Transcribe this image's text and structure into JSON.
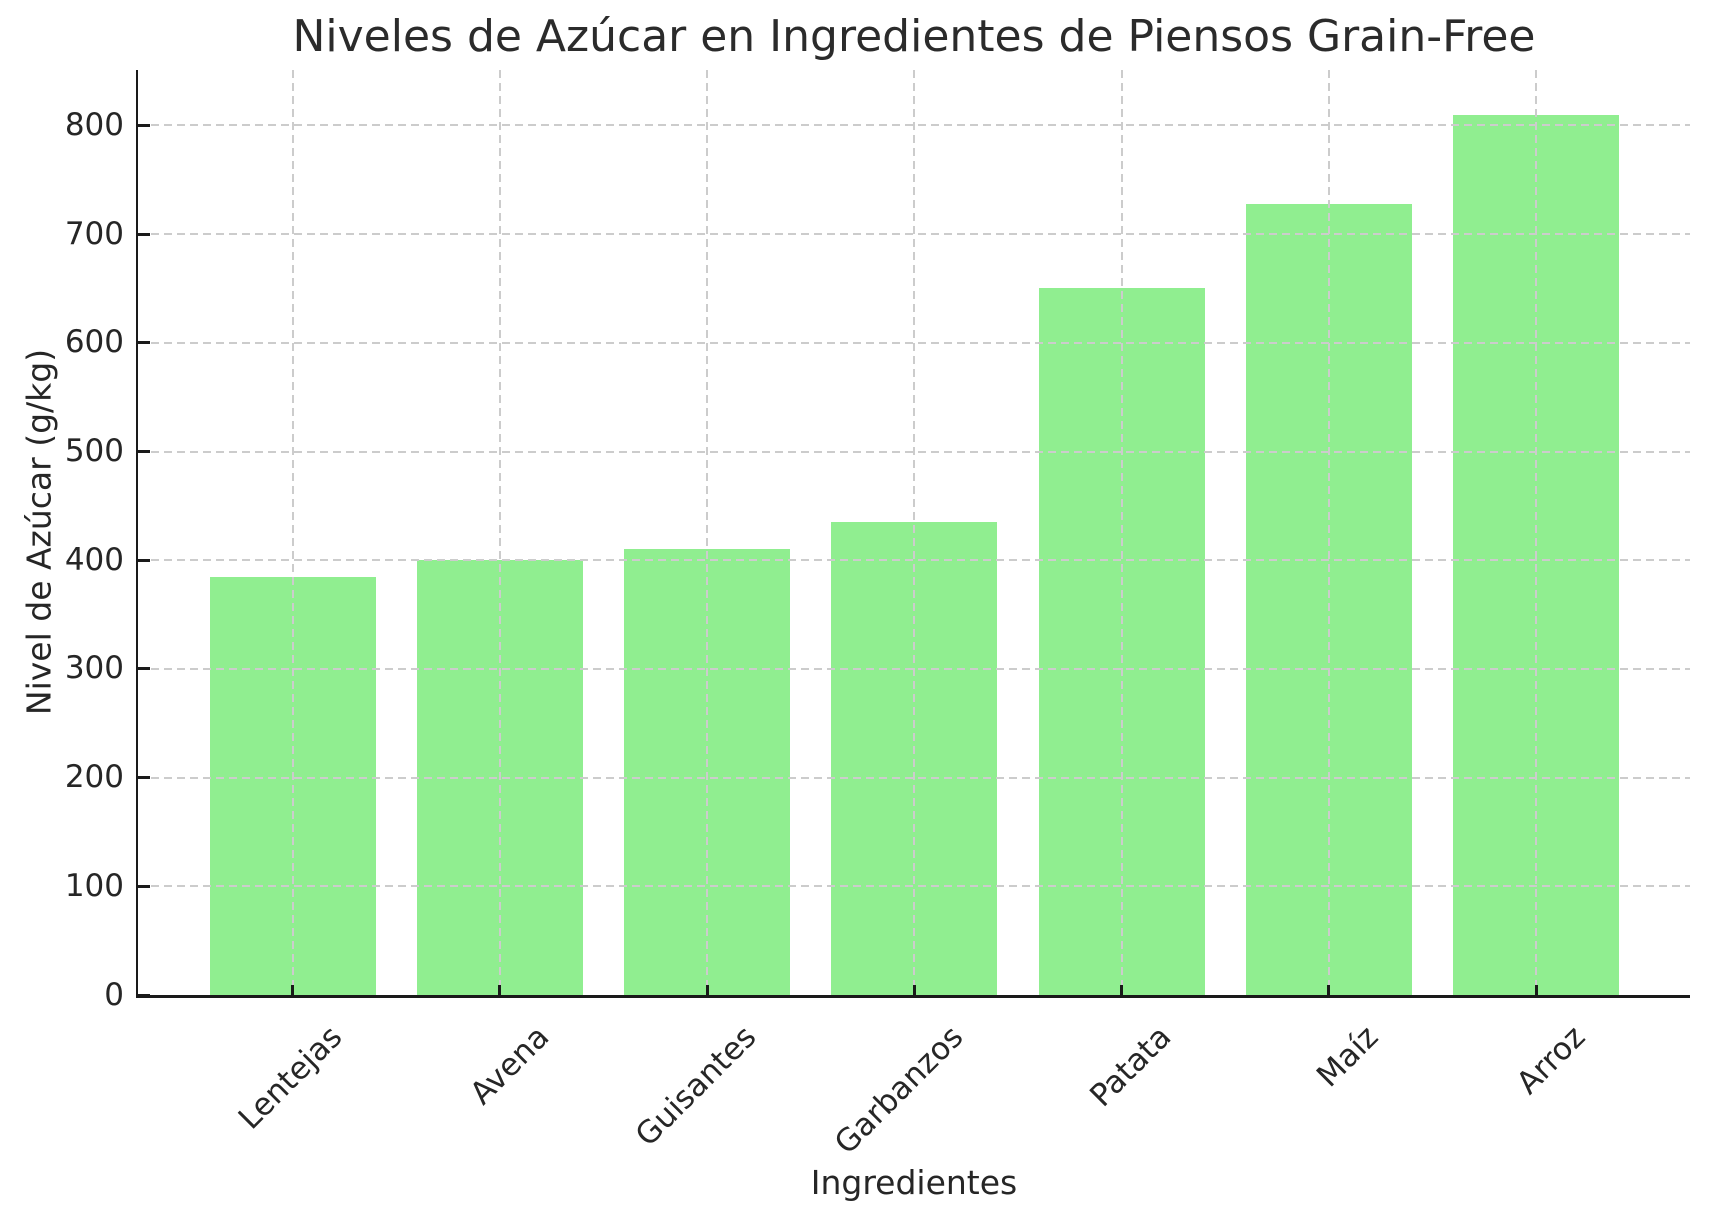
{
  "chart_data": {
    "type": "bar",
    "title": "Niveles de Azúcar en Ingredientes de Piensos Grain-Free",
    "xlabel": "Ingredientes",
    "ylabel": "Nivel de Azúcar (g/kg)",
    "categories": [
      "Lentejas",
      "Avena",
      "Guisantes",
      "Garbanzos",
      "Patata",
      "Maíz",
      "Arroz"
    ],
    "values": [
      385,
      400,
      410,
      435,
      650,
      728,
      810
    ],
    "yticks": [
      0,
      100,
      200,
      300,
      400,
      500,
      600,
      700,
      800
    ],
    "ylim": [
      0,
      851
    ],
    "bar_color": "#90EE90",
    "grid": true,
    "grid_style": "dashed",
    "grid_color": "#cccccc",
    "spine_color": "#1a1a1a",
    "text_color": "#262626",
    "xtick_rotation_deg": 45,
    "legend_position": "none"
  }
}
